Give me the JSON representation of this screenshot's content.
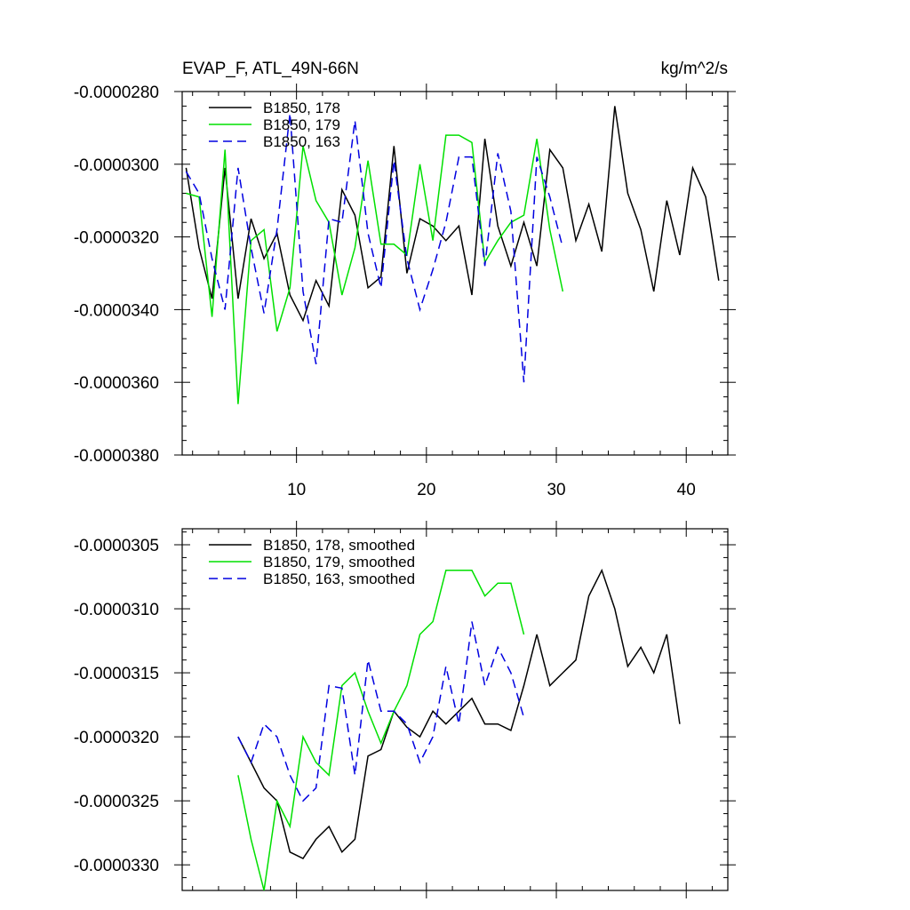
{
  "chart_data": [
    {
      "type": "line",
      "title": "EVAP_F, ATL_49N-66N",
      "units": "kg/m^2/s",
      "xlim": [
        1.2,
        43.2
      ],
      "ylim": [
        -3.8e-05,
        -2.8e-05
      ],
      "x_ticks": [
        10,
        20,
        30,
        40
      ],
      "x_tick_labels": [
        "10",
        "20",
        "30",
        "40"
      ],
      "y_ticks": [
        -2.8e-05,
        -3e-05,
        -3.2e-05,
        -3.4e-05,
        -3.6e-05,
        -3.8e-05
      ],
      "y_tick_labels": [
        "-0.0000280",
        "-0.0000300",
        "-0.0000320",
        "-0.0000340",
        "-0.0000360",
        "-0.0000380"
      ],
      "legend_position": "top-left",
      "series": [
        {
          "name": "B1850, 178",
          "color": "#000000",
          "dash": "solid",
          "x": [
            1.5,
            2.5,
            3.5,
            4.5,
            5.5,
            6.5,
            7.5,
            8.5,
            9.5,
            10.5,
            11.5,
            12.5,
            13.5,
            14.5,
            15.5,
            16.5,
            17.5,
            18.5,
            19.5,
            20.5,
            21.5,
            22.5,
            23.5,
            24.5,
            25.5,
            26.5,
            27.5,
            28.5,
            29.5,
            30.5,
            31.5,
            32.5,
            33.5,
            34.5,
            35.5,
            36.5,
            37.5,
            38.5,
            39.5,
            40.5,
            41.5,
            42.5
          ],
          "values": [
            -3.01e-05,
            -3.23e-05,
            -3.37e-05,
            -3.01e-05,
            -3.37e-05,
            -3.15e-05,
            -3.26e-05,
            -3.19e-05,
            -3.36e-05,
            -3.43e-05,
            -3.32e-05,
            -3.39e-05,
            -3.07e-05,
            -3.14e-05,
            -3.34e-05,
            -3.31e-05,
            -2.95e-05,
            -3.3e-05,
            -3.15e-05,
            -3.17e-05,
            -3.21e-05,
            -3.17e-05,
            -3.36e-05,
            -2.93e-05,
            -3.17e-05,
            -3.28e-05,
            -3.16e-05,
            -3.28e-05,
            -2.96e-05,
            -3.01e-05,
            -3.21e-05,
            -3.11e-05,
            -3.24e-05,
            -2.84e-05,
            -3.08e-05,
            -3.18e-05,
            -3.35e-05,
            -3.1e-05,
            -3.25e-05,
            -3.01e-05,
            -3.09e-05,
            -3.32e-05
          ]
        },
        {
          "name": "B1850, 179",
          "color": "#00e000",
          "dash": "solid",
          "x": [
            1.5,
            2.5,
            3.5,
            4.5,
            5.5,
            6.5,
            7.5,
            8.5,
            9.5,
            10.5,
            11.5,
            12.5,
            13.5,
            14.5,
            15.5,
            16.5,
            17.5,
            18.5,
            19.5,
            20.5,
            21.5,
            22.5,
            23.5,
            24.5,
            25.5,
            26.5,
            27.5,
            28.5,
            29.5,
            30.5
          ],
          "values": [
            -3.08e-05,
            -3.09e-05,
            -3.42e-05,
            -2.96e-05,
            -3.66e-05,
            -3.21e-05,
            -3.18e-05,
            -3.46e-05,
            -3.34e-05,
            -2.95e-05,
            -3.1e-05,
            -3.16e-05,
            -3.36e-05,
            -3.23e-05,
            -2.99e-05,
            -3.22e-05,
            -3.22e-05,
            -3.25e-05,
            -3e-05,
            -3.21e-05,
            -2.92e-05,
            -2.92e-05,
            -2.94e-05,
            -3.27e-05,
            -3.21e-05,
            -3.16e-05,
            -3.14e-05,
            -2.93e-05,
            -3.18e-05,
            -3.35e-05
          ]
        },
        {
          "name": "B1850, 163",
          "color": "#0000e0",
          "dash": "dashed",
          "x": [
            1.5,
            2.5,
            3.5,
            4.5,
            5.5,
            6.5,
            7.5,
            8.5,
            9.5,
            10.5,
            11.5,
            12.5,
            13.5,
            14.5,
            15.5,
            16.5,
            17.5,
            18.5,
            19.5,
            20.5,
            21.5,
            22.5,
            23.5,
            24.5,
            25.5,
            26.5,
            27.5,
            28.5,
            29.5,
            30.5
          ],
          "values": [
            -3.02e-05,
            -3.08e-05,
            -3.26e-05,
            -3.4e-05,
            -3.01e-05,
            -3.23e-05,
            -3.41e-05,
            -3.18e-05,
            -2.86e-05,
            -3.35e-05,
            -3.55e-05,
            -3.15e-05,
            -3.16e-05,
            -2.88e-05,
            -3.19e-05,
            -3.34e-05,
            -2.99e-05,
            -3.26e-05,
            -3.4e-05,
            -3.29e-05,
            -3.16e-05,
            -2.98e-05,
            -2.98e-05,
            -3.28e-05,
            -2.97e-05,
            -3.13e-05,
            -3.6e-05,
            -2.98e-05,
            -3.09e-05,
            -3.23e-05
          ]
        }
      ]
    },
    {
      "type": "line",
      "title": "",
      "xlim": [
        1.2,
        43.2
      ],
      "ylim": [
        -3.32e-05,
        -3.0375e-05
      ],
      "x_ticks": [
        10,
        20,
        30,
        40
      ],
      "x_tick_labels": [],
      "y_ticks": [
        -3.05e-05,
        -3.1e-05,
        -3.15e-05,
        -3.2e-05,
        -3.25e-05,
        -3.3e-05
      ],
      "y_tick_labels": [
        "-0.0000305",
        "-0.0000310",
        "-0.0000315",
        "-0.0000320",
        "-0.0000325",
        "-0.0000330"
      ],
      "legend_position": "top-left",
      "series": [
        {
          "name": "B1850, 178, smoothed",
          "color": "#000000",
          "dash": "solid",
          "x": [
            5.5,
            6.5,
            7.5,
            8.5,
            9.5,
            10.5,
            11.5,
            12.5,
            13.5,
            14.5,
            15.5,
            16.5,
            17.5,
            18.5,
            19.5,
            20.5,
            21.5,
            22.5,
            23.5,
            24.5,
            25.5,
            26.5,
            27.5,
            28.5,
            29.5,
            30.5,
            31.5,
            32.5,
            33.5,
            34.5,
            35.5,
            36.5,
            37.5,
            38.5,
            39.5
          ],
          "values": [
            -3.2e-05,
            -3.22e-05,
            -3.24e-05,
            -3.25e-05,
            -3.29e-05,
            -3.295e-05,
            -3.28e-05,
            -3.27e-05,
            -3.29e-05,
            -3.28e-05,
            -3.215e-05,
            -3.21e-05,
            -3.18e-05,
            -3.1925e-05,
            -3.2e-05,
            -3.18e-05,
            -3.19e-05,
            -3.18e-05,
            -3.17e-05,
            -3.19e-05,
            -3.19e-05,
            -3.195e-05,
            -3.16e-05,
            -3.12e-05,
            -3.16e-05,
            -3.15e-05,
            -3.14e-05,
            -3.09e-05,
            -3.07e-05,
            -3.1e-05,
            -3.145e-05,
            -3.13e-05,
            -3.15e-05,
            -3.12e-05,
            -3.19e-05
          ]
        },
        {
          "name": "B1850, 179, smoothed",
          "color": "#00e000",
          "dash": "solid",
          "x": [
            5.5,
            6.5,
            7.5,
            8.5,
            9.5,
            10.5,
            11.5,
            12.5,
            13.5,
            14.5,
            15.5,
            16.5,
            17.5,
            18.5,
            19.5,
            20.5,
            21.5,
            22.5,
            23.5,
            24.5,
            25.5,
            26.5,
            27.5
          ],
          "values": [
            -3.23e-05,
            -3.28e-05,
            -3.32e-05,
            -3.25e-05,
            -3.27e-05,
            -3.2e-05,
            -3.22e-05,
            -3.23e-05,
            -3.16e-05,
            -3.15e-05,
            -3.18e-05,
            -3.205e-05,
            -3.18e-05,
            -3.16e-05,
            -3.12e-05,
            -3.11e-05,
            -3.07e-05,
            -3.07e-05,
            -3.07e-05,
            -3.09e-05,
            -3.08e-05,
            -3.08e-05,
            -3.12e-05
          ]
        },
        {
          "name": "B1850, 163, smoothed",
          "color": "#0000e0",
          "dash": "dashed",
          "x": [
            5.5,
            6.5,
            7.5,
            8.5,
            9.5,
            10.5,
            11.5,
            12.5,
            13.5,
            14.5,
            15.5,
            16.5,
            17.5,
            18.5,
            19.5,
            20.5,
            21.5,
            22.5,
            23.5,
            24.5,
            25.5,
            26.5,
            27.5
          ],
          "values": [
            -3.2e-05,
            -3.22e-05,
            -3.19e-05,
            -3.2e-05,
            -3.23e-05,
            -3.25e-05,
            -3.24e-05,
            -3.16e-05,
            -3.162e-05,
            -3.23e-05,
            -3.14e-05,
            -3.18e-05,
            -3.18e-05,
            -3.19e-05,
            -3.22e-05,
            -3.2e-05,
            -3.145e-05,
            -3.19e-05,
            -3.11e-05,
            -3.16e-05,
            -3.13e-05,
            -3.15e-05,
            -3.185e-05
          ]
        }
      ]
    }
  ]
}
